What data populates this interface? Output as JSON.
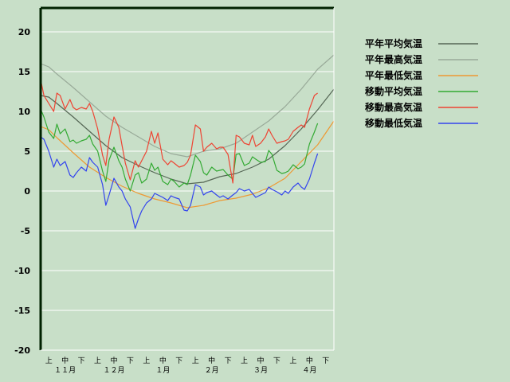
{
  "chart_data": {
    "type": "line",
    "title": "",
    "xlabel": "",
    "ylabel": "",
    "ylim": [
      -20,
      23
    ],
    "yticks": [
      20,
      15,
      10,
      5,
      0,
      -5,
      -10,
      -15,
      -20
    ],
    "grid": "horizontal",
    "legend_position": "top-right",
    "ten_day_ticks": [
      "上",
      "中",
      "下",
      "上",
      "中",
      "下",
      "上",
      "中",
      "下",
      "上",
      "中",
      "下",
      "上",
      "中",
      "下",
      "上",
      "中",
      "下"
    ],
    "months": [
      "１１月",
      "１２月",
      "１月",
      "２月",
      "３月",
      "４月"
    ],
    "series": [
      {
        "name": "平年平均気温",
        "color": "#556655",
        "x": [
          0,
          5,
          10,
          20,
          30,
          40,
          50,
          60,
          70,
          80,
          90,
          100,
          110,
          120,
          130,
          140,
          150,
          160,
          170,
          180
        ],
        "values": [
          12.0,
          11.8,
          11.0,
          9.3,
          7.5,
          5.7,
          4.2,
          3.2,
          2.3,
          1.5,
          0.9,
          1.1,
          1.8,
          2.2,
          3.0,
          4.0,
          5.7,
          7.8,
          10.2,
          12.8
        ]
      },
      {
        "name": "平年最高気温",
        "color": "#99aa99",
        "x": [
          0,
          5,
          10,
          20,
          30,
          40,
          50,
          60,
          70,
          80,
          90,
          100,
          110,
          120,
          130,
          140,
          150,
          160,
          170,
          180
        ],
        "values": [
          16.0,
          15.6,
          14.7,
          13.0,
          11.2,
          9.4,
          8.0,
          6.8,
          5.6,
          4.7,
          4.3,
          5.0,
          5.3,
          6.0,
          7.4,
          8.8,
          10.6,
          12.8,
          15.3,
          17.1
        ]
      },
      {
        "name": "平年最低気温",
        "color": "#ee9933",
        "x": [
          0,
          5,
          10,
          20,
          30,
          40,
          50,
          60,
          70,
          80,
          90,
          100,
          110,
          120,
          130,
          140,
          150,
          160,
          170,
          180
        ],
        "values": [
          8.1,
          7.7,
          6.7,
          4.8,
          3.0,
          1.7,
          0.6,
          -0.3,
          -1.0,
          -1.5,
          -2.1,
          -1.8,
          -1.2,
          -0.9,
          -0.4,
          0.4,
          1.6,
          3.7,
          5.8,
          8.8
        ]
      },
      {
        "name": "移動平均気温",
        "color": "#33aa33",
        "x": [
          0,
          2,
          5,
          8,
          10,
          12,
          15,
          18,
          20,
          22,
          25,
          28,
          30,
          32,
          35,
          38,
          40,
          42,
          45,
          48,
          50,
          52,
          55,
          58,
          60,
          62,
          65,
          68,
          70,
          72,
          75,
          78,
          80,
          82,
          85,
          88,
          90,
          92,
          95,
          98,
          100,
          102,
          105,
          108,
          110,
          112,
          115,
          118,
          120,
          122,
          125,
          128,
          130,
          132,
          135,
          138,
          140,
          142,
          145,
          148,
          150,
          152,
          155,
          158,
          160,
          162,
          165,
          168,
          170
        ],
        "values": [
          10.3,
          9.3,
          7.4,
          6.6,
          8.4,
          7.2,
          7.8,
          6.2,
          6.4,
          6.0,
          6.3,
          6.5,
          7.0,
          5.9,
          5.0,
          2.5,
          1.2,
          3.9,
          5.5,
          3.8,
          3.0,
          1.5,
          0.0,
          2.0,
          2.3,
          1.0,
          1.5,
          3.5,
          2.6,
          3.0,
          1.2,
          0.8,
          1.5,
          1.2,
          0.5,
          1.0,
          0.8,
          2.0,
          4.5,
          3.7,
          2.3,
          2.0,
          3.0,
          2.5,
          2.6,
          2.7,
          2.0,
          1.5,
          4.6,
          4.7,
          3.2,
          3.5,
          4.3,
          4.0,
          3.6,
          3.7,
          5.1,
          4.6,
          2.6,
          2.2,
          2.3,
          2.5,
          3.3,
          2.8,
          3.0,
          3.4,
          5.9,
          7.4,
          8.5
        ]
      },
      {
        "name": "移動最高気温",
        "color": "#ee4433",
        "x": [
          0,
          2,
          5,
          8,
          10,
          12,
          15,
          18,
          20,
          22,
          25,
          28,
          30,
          32,
          35,
          38,
          40,
          42,
          45,
          48,
          50,
          52,
          55,
          58,
          60,
          62,
          65,
          68,
          70,
          72,
          75,
          78,
          80,
          82,
          85,
          88,
          90,
          92,
          95,
          98,
          100,
          102,
          105,
          108,
          110,
          112,
          115,
          118,
          120,
          122,
          125,
          128,
          130,
          132,
          135,
          138,
          140,
          142,
          145,
          148,
          150,
          152,
          155,
          158,
          160,
          162,
          165,
          168,
          170
        ],
        "values": [
          14.0,
          12.0,
          11.0,
          10.0,
          12.3,
          12.0,
          10.3,
          11.5,
          10.5,
          10.2,
          10.5,
          10.3,
          11.0,
          10.0,
          7.8,
          4.5,
          3.2,
          6.5,
          9.3,
          8.0,
          5.7,
          3.5,
          1.4,
          3.8,
          3.0,
          3.8,
          5.0,
          7.5,
          6.0,
          7.3,
          4.0,
          3.3,
          3.8,
          3.5,
          3.0,
          3.2,
          3.6,
          4.5,
          8.3,
          7.8,
          5.0,
          5.5,
          6.0,
          5.3,
          5.5,
          5.5,
          4.6,
          1.0,
          7.0,
          6.8,
          6.0,
          5.8,
          7.0,
          5.6,
          6.0,
          6.8,
          7.8,
          7.0,
          6.0,
          6.2,
          6.3,
          6.5,
          7.5,
          8.0,
          8.3,
          8.0,
          10.3,
          12.0,
          12.3
        ]
      },
      {
        "name": "移動最低気温",
        "color": "#3344ee",
        "x": [
          0,
          2,
          5,
          8,
          10,
          12,
          15,
          18,
          20,
          22,
          25,
          28,
          30,
          32,
          35,
          38,
          40,
          42,
          45,
          48,
          50,
          52,
          55,
          58,
          60,
          62,
          65,
          68,
          70,
          72,
          75,
          78,
          80,
          82,
          85,
          88,
          90,
          92,
          95,
          98,
          100,
          102,
          105,
          108,
          110,
          112,
          115,
          118,
          120,
          122,
          125,
          128,
          130,
          132,
          135,
          138,
          140,
          142,
          145,
          148,
          150,
          152,
          155,
          158,
          160,
          162,
          165,
          168,
          170
        ],
        "values": [
          6.8,
          6.5,
          5.0,
          3.0,
          4.0,
          3.2,
          3.7,
          2.0,
          1.7,
          2.3,
          3.0,
          2.5,
          4.2,
          3.6,
          3.0,
          0.8,
          -1.8,
          -0.5,
          1.6,
          0.5,
          0.0,
          -1.0,
          -2.0,
          -4.7,
          -3.5,
          -2.5,
          -1.5,
          -1.0,
          -0.3,
          -0.5,
          -0.8,
          -1.2,
          -0.6,
          -0.8,
          -1.0,
          -2.4,
          -2.5,
          -1.8,
          0.8,
          0.5,
          -0.5,
          -0.2,
          0.0,
          -0.5,
          -0.8,
          -0.6,
          -1.0,
          -0.5,
          -0.2,
          0.3,
          0.0,
          0.2,
          -0.3,
          -0.8,
          -0.5,
          -0.2,
          0.5,
          0.2,
          -0.1,
          -0.5,
          0.0,
          -0.3,
          0.5,
          1.0,
          0.5,
          0.2,
          1.5,
          3.5,
          4.7
        ]
      }
    ]
  }
}
